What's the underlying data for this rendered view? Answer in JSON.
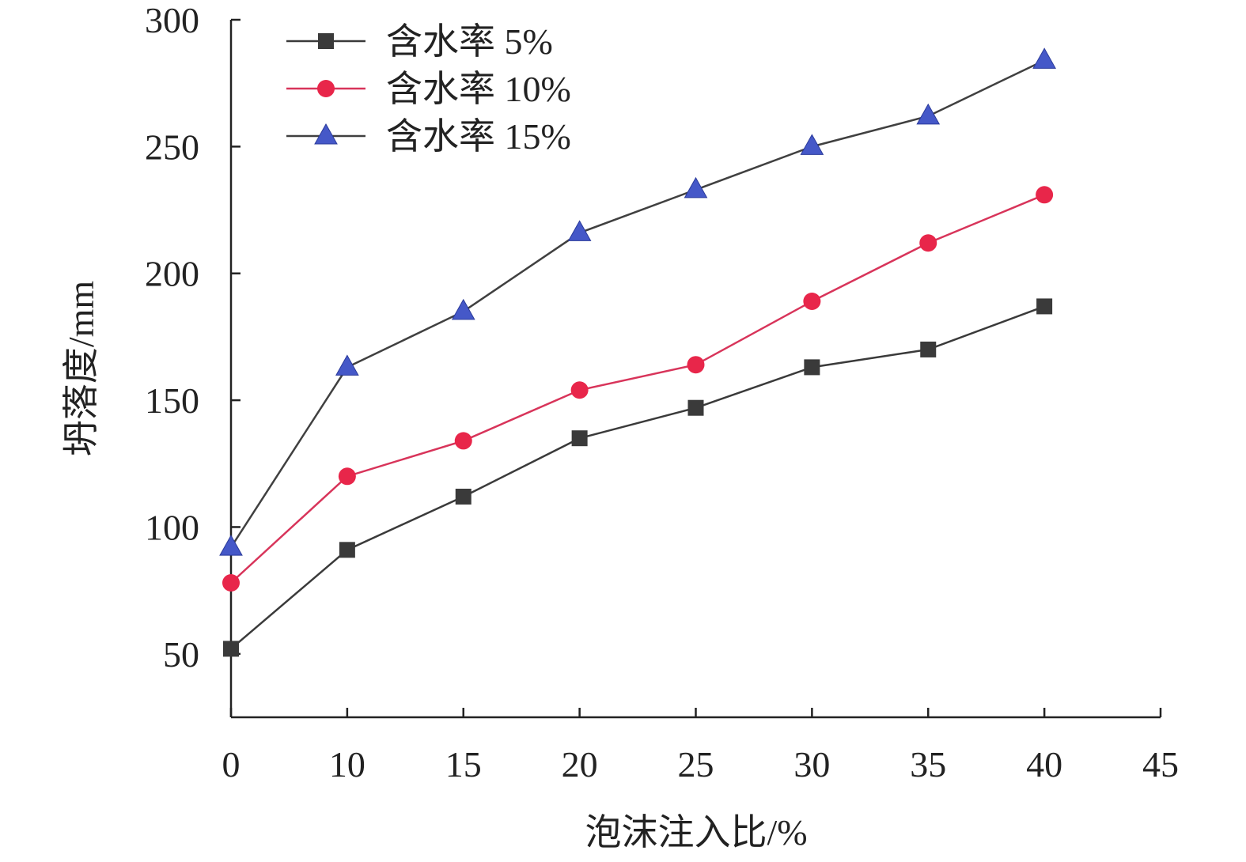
{
  "chart_data": {
    "type": "line",
    "title": "",
    "xlabel": "泡沫注入比/%",
    "ylabel": "坍落度/mm",
    "x_tick_labels": [
      "0",
      "10",
      "15",
      "20",
      "25",
      "30",
      "35",
      "40",
      "45"
    ],
    "x": [
      0,
      10,
      15,
      20,
      25,
      30,
      35,
      40
    ],
    "y_ticks": [
      50,
      100,
      150,
      200,
      250,
      300
    ],
    "ylim": [
      25,
      300
    ],
    "legend_position": "top-left",
    "series": [
      {
        "name": "含水率 5%",
        "marker": "square",
        "color": "#3a3a3a",
        "line_color": "#3a3a3a",
        "values": [
          52,
          91,
          112,
          135,
          147,
          163,
          170,
          187
        ]
      },
      {
        "name": "含水率 10%",
        "marker": "circle",
        "color": "#e8264a",
        "line_color": "#d8345a",
        "values": [
          78,
          120,
          134,
          154,
          164,
          189,
          212,
          231
        ]
      },
      {
        "name": "含水率 15%",
        "marker": "triangle",
        "color": "#4558c8",
        "line_color": "#404040",
        "values": [
          92,
          163,
          185,
          216,
          233,
          250,
          262,
          284
        ]
      }
    ]
  }
}
